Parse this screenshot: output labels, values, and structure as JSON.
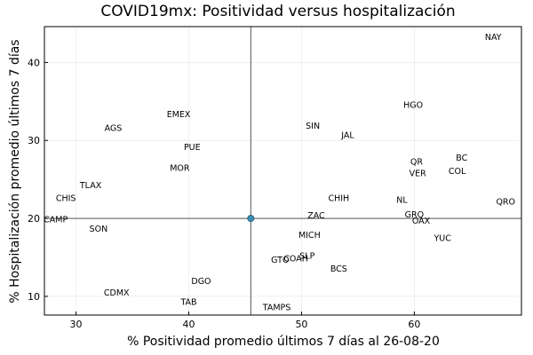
{
  "chart_data": {
    "type": "scatter",
    "title": "COVID19mx: Positividad versus hospitalización",
    "xlabel": "% Positividad promedio últimos 7 días al 26-08-20",
    "ylabel": "% Hospitalización promedio últimos 7 días",
    "xlim": [
      27.2,
      69.5
    ],
    "ylim": [
      7.6,
      44.6
    ],
    "xticks": [
      30,
      40,
      50,
      60
    ],
    "yticks": [
      10,
      20,
      30,
      40
    ],
    "grid": true,
    "reference_lines": {
      "x": 45.5,
      "y": 20.0
    },
    "mean_point": {
      "x": 45.5,
      "y": 20.0
    },
    "points": [
      {
        "label": "NAY",
        "x": 67.0,
        "y": 43.3
      },
      {
        "label": "HGO",
        "x": 59.9,
        "y": 34.6
      },
      {
        "label": "EMEX",
        "x": 39.1,
        "y": 33.4
      },
      {
        "label": "SIN",
        "x": 51.0,
        "y": 31.9
      },
      {
        "label": "AGS",
        "x": 33.3,
        "y": 31.6
      },
      {
        "label": "JAL",
        "x": 54.1,
        "y": 30.7
      },
      {
        "label": "PUE",
        "x": 40.3,
        "y": 29.2
      },
      {
        "label": "BC",
        "x": 64.2,
        "y": 27.8
      },
      {
        "label": "QR",
        "x": 60.2,
        "y": 27.3
      },
      {
        "label": "MOR",
        "x": 39.2,
        "y": 26.5
      },
      {
        "label": "COL",
        "x": 63.8,
        "y": 26.1
      },
      {
        "label": "VER",
        "x": 60.3,
        "y": 25.8
      },
      {
        "label": "TLAX",
        "x": 31.3,
        "y": 24.3
      },
      {
        "label": "CHIS",
        "x": 29.1,
        "y": 22.6
      },
      {
        "label": "CHIH",
        "x": 53.3,
        "y": 22.6
      },
      {
        "label": "NL",
        "x": 58.9,
        "y": 22.4
      },
      {
        "label": "QRO",
        "x": 68.1,
        "y": 22.2
      },
      {
        "label": "ZAC",
        "x": 51.3,
        "y": 20.4
      },
      {
        "label": "GRO",
        "x": 60.0,
        "y": 20.5
      },
      {
        "label": "CAMP",
        "x": 28.2,
        "y": 19.9
      },
      {
        "label": "OAX",
        "x": 60.6,
        "y": 19.7
      },
      {
        "label": "SON",
        "x": 32.0,
        "y": 18.7
      },
      {
        "label": "MICH",
        "x": 50.7,
        "y": 17.9
      },
      {
        "label": "YUC",
        "x": 62.5,
        "y": 17.5
      },
      {
        "label": "SLP",
        "x": 50.5,
        "y": 15.2
      },
      {
        "label": "COAH",
        "x": 49.5,
        "y": 14.9
      },
      {
        "label": "GTO",
        "x": 48.1,
        "y": 14.7
      },
      {
        "label": "BCS",
        "x": 53.3,
        "y": 13.6
      },
      {
        "label": "DGO",
        "x": 41.1,
        "y": 12.0
      },
      {
        "label": "CDMX",
        "x": 33.6,
        "y": 10.5
      },
      {
        "label": "TAB",
        "x": 40.0,
        "y": 9.3
      },
      {
        "label": "TAMPS",
        "x": 47.8,
        "y": 8.6
      }
    ]
  }
}
